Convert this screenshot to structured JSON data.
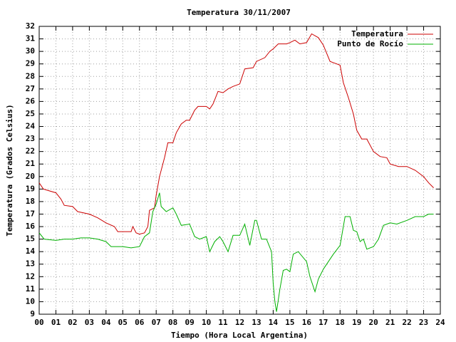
{
  "chart_data": {
    "type": "line",
    "title": "Temperatura 30/11/2007",
    "xlabel": "Tiempo (Hora Local Argentina)",
    "ylabel": "Temperatura (Grados Celsius)",
    "xlim": [
      0,
      24
    ],
    "ylim": [
      9,
      32
    ],
    "xticks": [
      {
        "value": 0,
        "label": "00"
      },
      {
        "value": 1,
        "label": "01"
      },
      {
        "value": 2,
        "label": "02"
      },
      {
        "value": 3,
        "label": "03"
      },
      {
        "value": 4,
        "label": "04"
      },
      {
        "value": 5,
        "label": "05"
      },
      {
        "value": 6,
        "label": "06"
      },
      {
        "value": 7,
        "label": "07"
      },
      {
        "value": 8,
        "label": "08"
      },
      {
        "value": 9,
        "label": "09"
      },
      10,
      11,
      12,
      13,
      14,
      15,
      16,
      17,
      18,
      19,
      20,
      21,
      22,
      23,
      24
    ],
    "yticks": [
      9,
      10,
      11,
      12,
      13,
      14,
      15,
      16,
      17,
      18,
      19,
      20,
      21,
      22,
      23,
      24,
      25,
      26,
      27,
      28,
      29,
      30,
      31,
      32
    ],
    "grid": true,
    "legend": "upper right",
    "series": [
      {
        "name": "Temperatura",
        "color": "#cc0000",
        "x": [
          0,
          0.25,
          0.5,
          1,
          1.3,
          1.5,
          2,
          2.3,
          3,
          3.5,
          4,
          4.5,
          4.7,
          5,
          5.5,
          5.6,
          5.8,
          6,
          6.3,
          6.5,
          6.6,
          6.9,
          7,
          7.2,
          7.5,
          7.7,
          8,
          8.2,
          8.5,
          8.8,
          9,
          9.3,
          9.5,
          10,
          10.2,
          10.4,
          10.7,
          11,
          11.3,
          11.6,
          12,
          12.3,
          12.8,
          13,
          13.5,
          13.8,
          14,
          14.3,
          14.8,
          15,
          15.3,
          15.6,
          16,
          16.3,
          16.7,
          17,
          17.4,
          17.8,
          18,
          18.2,
          18.5,
          18.8,
          19,
          19.3,
          19.6,
          20,
          20.4,
          20.8,
          21,
          21.5,
          22,
          22.5,
          23,
          23.3,
          23.6
        ],
        "values": [
          19.5,
          19.0,
          18.9,
          18.7,
          18.2,
          17.7,
          17.6,
          17.2,
          17.0,
          16.7,
          16.3,
          16.0,
          15.6,
          15.6,
          15.6,
          16.0,
          15.5,
          15.4,
          15.5,
          16.0,
          17.3,
          17.5,
          18.5,
          20,
          21.5,
          22.7,
          22.7,
          23.5,
          24.2,
          24.5,
          24.5,
          25.3,
          25.6,
          25.6,
          25.4,
          25.8,
          26.8,
          26.7,
          27,
          27.2,
          27.4,
          28.6,
          28.7,
          29.2,
          29.5,
          30,
          30.2,
          30.6,
          30.6,
          30.7,
          30.9,
          30.6,
          30.7,
          31.4,
          31.1,
          30.5,
          29.2,
          29.0,
          28.9,
          27.5,
          26.3,
          25,
          23.7,
          23,
          23,
          22,
          21.6,
          21.5,
          21,
          20.8,
          20.8,
          20.5,
          20,
          19.5,
          19.1
        ]
      },
      {
        "name": "Punto de Rocío",
        "color": "#00b000",
        "x": [
          0,
          0.3,
          1,
          1.5,
          2,
          2.5,
          3,
          3.5,
          4,
          4.3,
          5,
          5.5,
          6,
          6.3,
          6.6,
          6.8,
          7,
          7.2,
          7.3,
          7.6,
          8,
          8.2,
          8.5,
          9,
          9.3,
          9.6,
          10,
          10.2,
          10.5,
          10.8,
          11,
          11.3,
          11.6,
          12,
          12.3,
          12.6,
          12.9,
          13,
          13.3,
          13.6,
          13.9,
          14,
          14.1,
          14.2,
          14.4,
          14.6,
          14.8,
          15,
          15.2,
          15.5,
          16,
          16.2,
          16.5,
          16.7,
          17,
          17.4,
          17.6,
          18,
          18.3,
          18.6,
          18.8,
          19,
          19.2,
          19.4,
          19.6,
          20,
          20.3,
          20.6,
          21,
          21.4,
          22,
          22.5,
          23,
          23.3,
          23.6
        ],
        "values": [
          15.5,
          15.0,
          14.9,
          15,
          15,
          15.1,
          15.1,
          15.0,
          14.8,
          14.4,
          14.4,
          14.3,
          14.4,
          15.2,
          15.5,
          17.2,
          17.8,
          18.7,
          17.6,
          17.2,
          17.5,
          17,
          16.1,
          16.2,
          15.2,
          15,
          15.2,
          14,
          14.8,
          15.2,
          14.8,
          14.0,
          15.3,
          15.3,
          16.2,
          14.5,
          16.5,
          16.5,
          15,
          15,
          14,
          11.5,
          10,
          9.2,
          11,
          12.5,
          12.6,
          12.4,
          13.8,
          14,
          13.2,
          12,
          10.8,
          11.8,
          12.6,
          13.4,
          13.8,
          14.5,
          16.8,
          16.8,
          15.7,
          15.6,
          14.8,
          15,
          14.2,
          14.4,
          15,
          16.1,
          16.3,
          16.2,
          16.5,
          16.8,
          16.8,
          17.0,
          17.0
        ]
      }
    ]
  }
}
